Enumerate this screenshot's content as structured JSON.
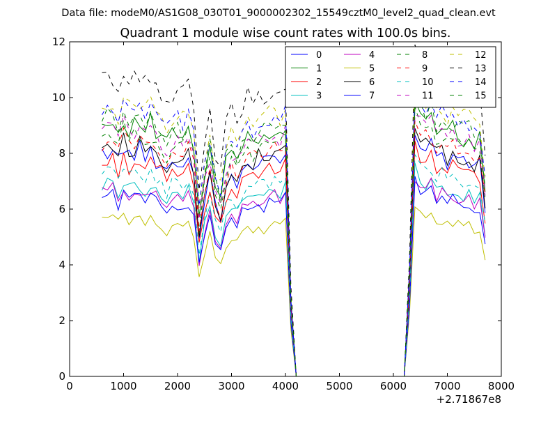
{
  "chart_data": {
    "type": "line",
    "suptitle": "Data file: modeM0/AS1G08_030T01_9000002302_15549cztM0_level2_quad_clean.evt",
    "title": "Quadrant 1 module wise count rates with 100.0s bins.",
    "xlabel": "",
    "ylabel": "",
    "x_offset_label": "+2.71867e8",
    "xlim": [
      0,
      8000
    ],
    "ylim": [
      0,
      12
    ],
    "xticks": [
      0,
      1000,
      2000,
      3000,
      4000,
      5000,
      6000,
      7000,
      8000
    ],
    "yticks": [
      0,
      2,
      4,
      6,
      8,
      10,
      12
    ],
    "grid": false,
    "legend_position": "top-right",
    "legend_columns": 4,
    "x": [
      600,
      700,
      800,
      900,
      1000,
      1100,
      1200,
      1300,
      1400,
      1500,
      1600,
      1700,
      1800,
      1900,
      2000,
      2100,
      2200,
      2300,
      2400,
      2500,
      2600,
      2700,
      2800,
      2900,
      3000,
      3100,
      3200,
      3300,
      3400,
      3500,
      3600,
      3700,
      3800,
      3900,
      4000,
      4100,
      4200,
      4300,
      4400,
      4500,
      4600,
      4700,
      4800,
      4900,
      5000,
      5100,
      5200,
      5300,
      5400,
      5500,
      5600,
      5700,
      5800,
      5900,
      6000,
      6100,
      6200,
      6300,
      6400,
      6500,
      6600,
      6700,
      6800,
      6900,
      7000,
      7100,
      7200,
      7300,
      7400,
      7500,
      7600,
      7700
    ],
    "series": [
      {
        "name": "0",
        "color": "#0000ff",
        "dash": "solid",
        "base": 8.0
      },
      {
        "name": "1",
        "color": "#008000",
        "dash": "solid",
        "base": 9.0
      },
      {
        "name": "2",
        "color": "#ff0000",
        "dash": "solid",
        "base": 7.6
      },
      {
        "name": "3",
        "color": "#00bfbf",
        "dash": "solid",
        "base": 6.8
      },
      {
        "name": "4",
        "color": "#bf00bf",
        "dash": "solid",
        "base": 6.6
      },
      {
        "name": "5",
        "color": "#bfbf00",
        "dash": "solid",
        "base": 5.6
      },
      {
        "name": "6",
        "color": "#000000",
        "dash": "solid",
        "base": 8.2
      },
      {
        "name": "7",
        "color": "#0000ff",
        "dash": "solid",
        "base": 6.4
      },
      {
        "name": "8",
        "color": "#008000",
        "dash": "dashed",
        "base": 8.6
      },
      {
        "name": "9",
        "color": "#ff0000",
        "dash": "dashed",
        "base": 8.4
      },
      {
        "name": "10",
        "color": "#00bfbf",
        "dash": "dashed",
        "base": 7.2
      },
      {
        "name": "11",
        "color": "#bf00bf",
        "dash": "dashed",
        "base": 8.8
      },
      {
        "name": "12",
        "color": "#bfbf00",
        "dash": "dashed",
        "base": 9.7
      },
      {
        "name": "13",
        "color": "#000000",
        "dash": "dashed",
        "base": 10.6
      },
      {
        "name": "14",
        "color": "#0000ff",
        "dash": "dashed",
        "base": 9.5
      },
      {
        "name": "15",
        "color": "#008000",
        "dash": "dashed",
        "base": 9.2
      }
    ],
    "profile": [
      1.0,
      1.01,
      1.02,
      0.97,
      1.03,
      0.99,
      1.0,
      1.02,
      0.98,
      1.01,
      0.97,
      0.96,
      0.92,
      0.96,
      0.97,
      0.95,
      0.97,
      0.91,
      0.62,
      0.8,
      0.9,
      0.76,
      0.7,
      0.85,
      0.9,
      0.86,
      0.92,
      0.95,
      0.93,
      0.96,
      0.95,
      0.97,
      0.98,
      0.96,
      1.0,
      0.3,
      0.0,
      0.0,
      0.0,
      0.0,
      0.0,
      0.0,
      0.0,
      0.0,
      0.0,
      0.0,
      0.0,
      0.0,
      0.0,
      0.0,
      0.0,
      0.0,
      0.0,
      0.0,
      0.0,
      0.0,
      0.0,
      0.4,
      1.1,
      1.05,
      1.02,
      1.04,
      0.98,
      1.0,
      0.96,
      0.99,
      0.97,
      0.95,
      0.96,
      0.93,
      0.94,
      0.75
    ]
  }
}
